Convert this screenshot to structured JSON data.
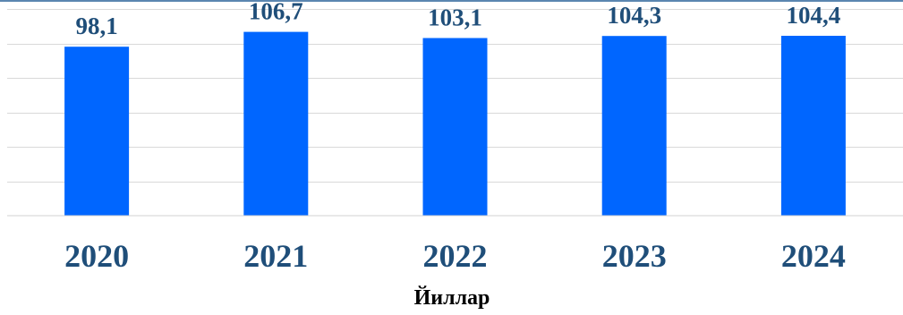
{
  "chart_data": {
    "type": "bar",
    "categories": [
      "2020",
      "2021",
      "2022",
      "2023",
      "2024"
    ],
    "values": [
      98.1,
      106.7,
      103.1,
      104.3,
      104.4
    ],
    "value_labels": [
      "98,1",
      "106,7",
      "103,1",
      "104,3",
      "104,4"
    ],
    "xlabel": "Йиллар",
    "ylabel": "",
    "title": "",
    "ylim": [
      0,
      120
    ],
    "grid": true,
    "legend": "none",
    "bar_color": "#0066ff",
    "label_color": "#1f4e79"
  }
}
